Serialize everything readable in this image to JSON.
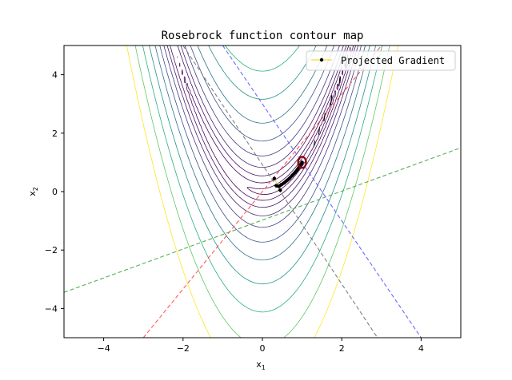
{
  "chart_data": {
    "type": "line",
    "title": "Rosebrock function contour map",
    "xlabel": "x",
    "xlabel_sub": "1",
    "ylabel": "x",
    "ylabel_sub": "2",
    "xlim": [
      -5,
      5
    ],
    "ylim": [
      -5,
      5
    ],
    "xticks": [
      -4,
      -2,
      0,
      2,
      4
    ],
    "yticks": [
      -4,
      -2,
      0,
      2,
      4
    ],
    "grid": false,
    "legend_position": "top-right",
    "legend": [
      {
        "label": "Projected Gradient",
        "color": "#f5d000",
        "marker": "point"
      }
    ],
    "contour": {
      "function": "rosenbrock",
      "levels": [
        2,
        10,
        30,
        70,
        150,
        300,
        550,
        1000,
        1700,
        2800,
        4500
      ],
      "colors": [
        "#440154",
        "#46085c",
        "#471365",
        "#47206f",
        "#433a83",
        "#3b528b",
        "#2c728e",
        "#21918c",
        "#28ae80",
        "#5ec962",
        "#fde725"
      ]
    },
    "reference_lines": [
      {
        "color": "#6a6aff",
        "style": "dashed",
        "points": [
          [
            -1.0,
            5.0
          ],
          [
            4.0,
            -5.0
          ]
        ]
      },
      {
        "color": "#808080",
        "style": "dashed",
        "points": [
          [
            -2.0,
            5.0
          ],
          [
            2.9,
            -5.0
          ]
        ]
      },
      {
        "color": "#ff5a5a",
        "style": "dashed",
        "points": [
          [
            -3.0,
            -5.0
          ],
          [
            3.0,
            5.0
          ]
        ]
      },
      {
        "color": "#55b055",
        "style": "dashed",
        "points": [
          [
            -5.0,
            -3.45
          ],
          [
            5.0,
            1.5
          ]
        ]
      }
    ],
    "path": {
      "name": "Projected Gradient",
      "color": "#f5d000",
      "points": [
        [
          0.3,
          0.45
        ],
        [
          0.45,
          0.05
        ],
        [
          0.35,
          0.2
        ],
        [
          0.42,
          0.18
        ],
        [
          0.48,
          0.24
        ],
        [
          0.55,
          0.3
        ],
        [
          0.62,
          0.38
        ],
        [
          0.68,
          0.45
        ],
        [
          0.75,
          0.55
        ],
        [
          0.82,
          0.65
        ],
        [
          0.88,
          0.75
        ],
        [
          0.93,
          0.85
        ],
        [
          0.97,
          0.93
        ],
        [
          1.0,
          1.0
        ]
      ]
    },
    "minimum_marker": {
      "x": 1.0,
      "y": 1.0,
      "color": "#8b0000"
    },
    "trail_segments": [
      [
        [
          1.3,
          1.55
        ],
        [
          1.32,
          1.75
        ]
      ],
      [
        [
          1.42,
          1.95
        ],
        [
          1.44,
          2.2
        ]
      ],
      [
        [
          1.55,
          2.4
        ],
        [
          1.58,
          2.7
        ]
      ],
      [
        [
          1.72,
          2.95
        ],
        [
          1.75,
          3.3
        ]
      ],
      [
        [
          1.93,
          3.6
        ],
        [
          1.96,
          3.95
        ]
      ],
      [
        [
          2.1,
          4.2
        ],
        [
          2.13,
          4.55
        ]
      ]
    ]
  }
}
